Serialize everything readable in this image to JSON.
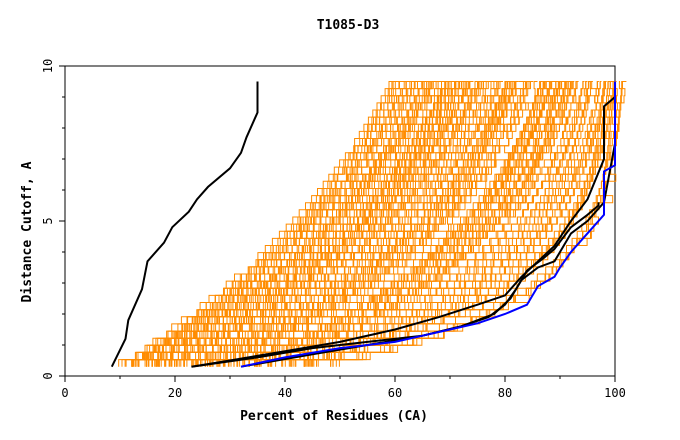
{
  "chart_data": {
    "type": "line",
    "title": "T1085-D3",
    "xlabel": "Percent of Residues (CA)",
    "ylabel": "Distance Cutoff, A",
    "xlim": [
      0,
      100
    ],
    "ylim": [
      0,
      10
    ],
    "x_ticks": [
      0,
      20,
      40,
      60,
      80,
      100
    ],
    "y_ticks": [
      0,
      5,
      10
    ],
    "x_tick_labels": [
      "0",
      "20",
      "40",
      "60",
      "80",
      "100"
    ],
    "y_tick_labels": [
      "0",
      "5",
      "10"
    ],
    "grid": false,
    "colors": {
      "background_models": "#ff8c00",
      "highlight_black": "#000000",
      "highlight_blue": "#0000ff"
    },
    "background_series_count": 150,
    "series": [
      {
        "color": "#000000",
        "points": [
          [
            8.5,
            0.3
          ],
          [
            11,
            1.2
          ],
          [
            11.5,
            1.8
          ],
          [
            14,
            2.8
          ],
          [
            15,
            3.7
          ],
          [
            18,
            4.3
          ],
          [
            19.5,
            4.8
          ],
          [
            22.5,
            5.3
          ],
          [
            24,
            5.7
          ],
          [
            26,
            6.1
          ],
          [
            30,
            6.7
          ],
          [
            32,
            7.2
          ],
          [
            33,
            7.7
          ],
          [
            35,
            8.5
          ],
          [
            35,
            9.5
          ]
        ]
      },
      {
        "color": "#000000",
        "points": [
          [
            23,
            0.3
          ],
          [
            30,
            0.5
          ],
          [
            40,
            0.8
          ],
          [
            50,
            1.1
          ],
          [
            60,
            1.5
          ],
          [
            68,
            1.9
          ],
          [
            75,
            2.3
          ],
          [
            80,
            2.6
          ],
          [
            83,
            3.2
          ],
          [
            86,
            3.7
          ],
          [
            89,
            4.2
          ],
          [
            92,
            5.0
          ],
          [
            95,
            5.7
          ],
          [
            98,
            7.0
          ],
          [
            98,
            8.7
          ],
          [
            100,
            9.0
          ],
          [
            100,
            9.5
          ]
        ]
      },
      {
        "color": "#000000",
        "points": [
          [
            23,
            0.3
          ],
          [
            35,
            0.6
          ],
          [
            45,
            0.9
          ],
          [
            55,
            1.1
          ],
          [
            65,
            1.3
          ],
          [
            72,
            1.6
          ],
          [
            77,
            1.9
          ],
          [
            80,
            2.3
          ],
          [
            82,
            2.8
          ],
          [
            84,
            3.4
          ],
          [
            87,
            3.8
          ],
          [
            89,
            4.1
          ],
          [
            92,
            4.8
          ],
          [
            95,
            5.2
          ],
          [
            97,
            5.5
          ],
          [
            97,
            5.6
          ]
        ]
      },
      {
        "color": "#000000",
        "points": [
          [
            32,
            0.3
          ],
          [
            45,
            0.7
          ],
          [
            55,
            1.0
          ],
          [
            65,
            1.3
          ],
          [
            72,
            1.6
          ],
          [
            78,
            2.0
          ],
          [
            81,
            2.5
          ],
          [
            83,
            3.1
          ],
          [
            86,
            3.5
          ],
          [
            89,
            3.7
          ],
          [
            92,
            4.6
          ],
          [
            95,
            5.0
          ],
          [
            98,
            5.6
          ],
          [
            100,
            7.5
          ]
        ]
      },
      {
        "color": "#0000ff",
        "points": [
          [
            32,
            0.3
          ],
          [
            40,
            0.6
          ],
          [
            50,
            0.9
          ],
          [
            60,
            1.1
          ],
          [
            65,
            1.3
          ],
          [
            70,
            1.5
          ],
          [
            75,
            1.7
          ],
          [
            80,
            2.0
          ],
          [
            84,
            2.3
          ],
          [
            86,
            2.9
          ],
          [
            89,
            3.2
          ],
          [
            90,
            3.5
          ],
          [
            92,
            4.0
          ],
          [
            94,
            4.4
          ],
          [
            96,
            4.8
          ],
          [
            98,
            5.2
          ],
          [
            98,
            6.6
          ],
          [
            100,
            6.8
          ],
          [
            100,
            9.5
          ]
        ]
      }
    ]
  }
}
